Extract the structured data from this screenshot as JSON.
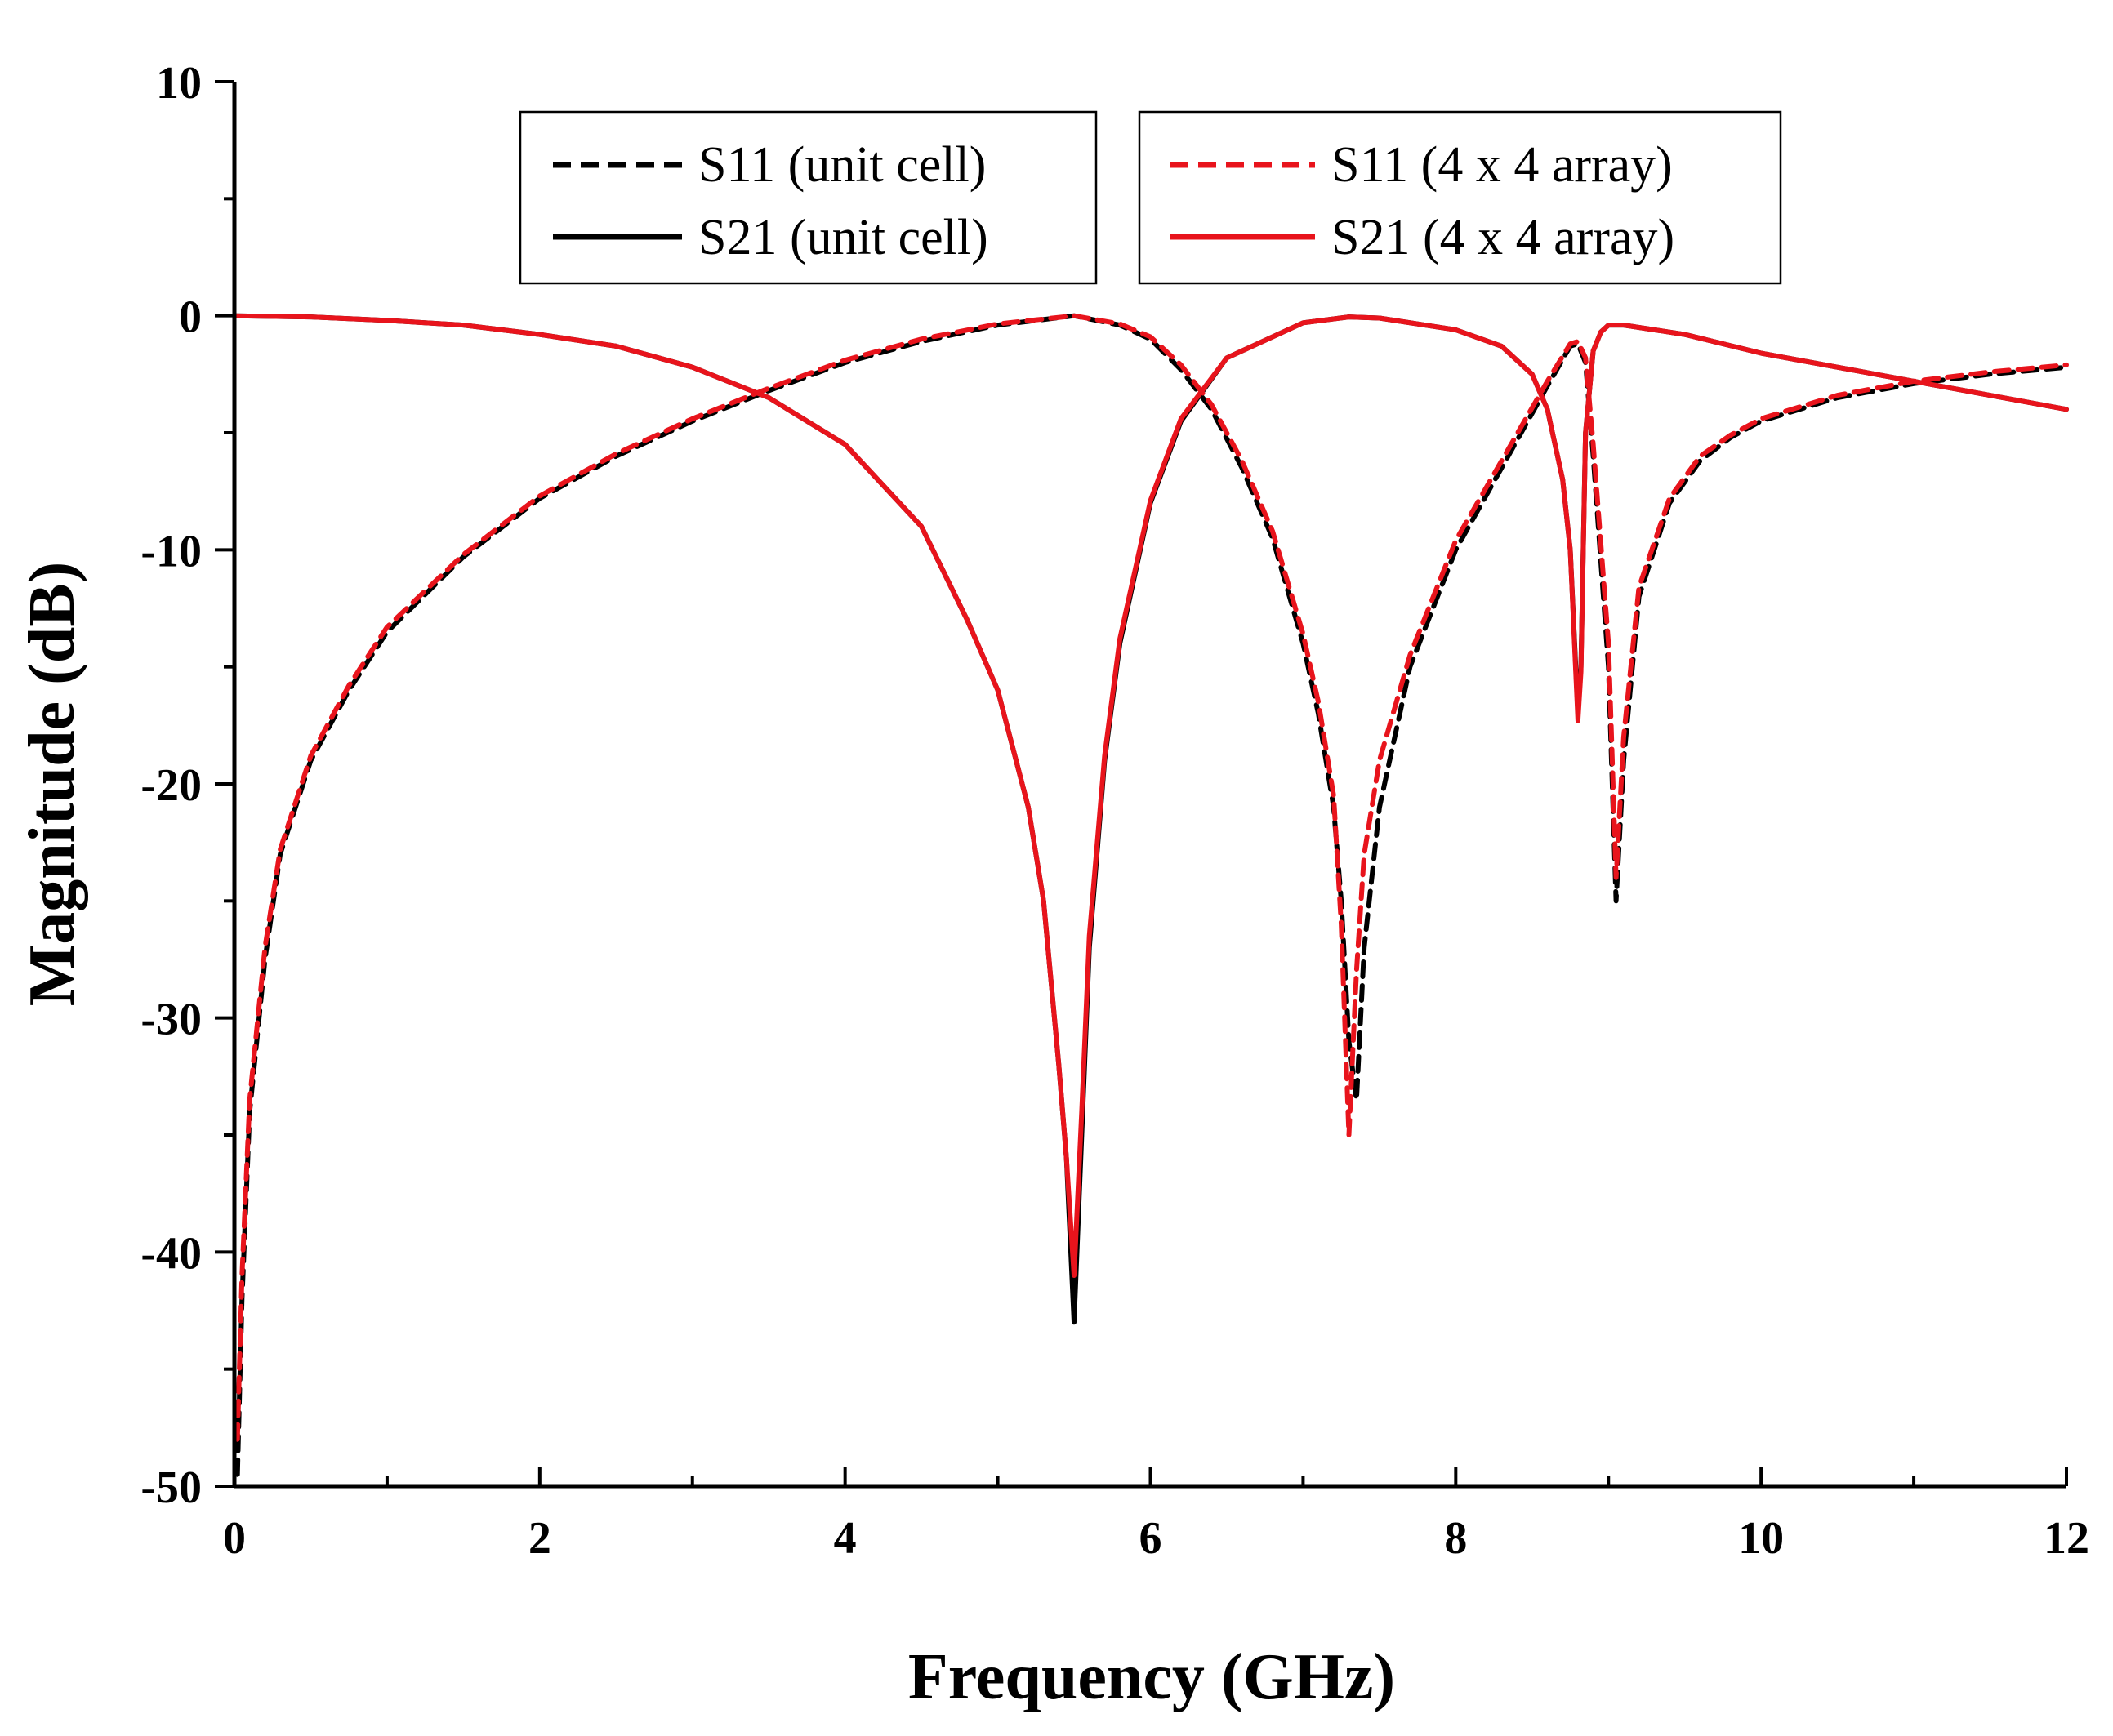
{
  "chart_data": {
    "type": "line",
    "title": "",
    "xlabel": "Frequency (GHz)",
    "ylabel": "Magnitude (dB)",
    "xlim": [
      0,
      12
    ],
    "ylim": [
      -50,
      10
    ],
    "xticks": [
      0,
      2,
      4,
      6,
      8,
      10,
      12
    ],
    "xtick_labels": [
      "0",
      "2",
      "4",
      "6",
      "8",
      "10",
      "12"
    ],
    "yticks": [
      10,
      0,
      -10,
      -20,
      -30,
      -40,
      -50
    ],
    "ytick_labels": [
      "10",
      "0",
      "-10",
      "-20",
      "-30",
      "-40",
      "-50"
    ],
    "grid": false,
    "legend_position": "top",
    "series": [
      {
        "name": "S11 (unit cell)",
        "color": "#000000",
        "style": "dashed",
        "x": [
          0.02,
          0.05,
          0.1,
          0.2,
          0.3,
          0.5,
          0.75,
          1.0,
          1.5,
          2.0,
          2.5,
          3.0,
          3.5,
          4.0,
          4.5,
          5.0,
          5.5,
          5.8,
          6.0,
          6.2,
          6.4,
          6.6,
          6.8,
          7.0,
          7.1,
          7.2,
          7.25,
          7.3,
          7.35,
          7.4,
          7.5,
          7.7,
          8.0,
          8.3,
          8.6,
          8.75,
          8.8,
          8.85,
          8.9,
          9.0,
          9.05,
          9.1,
          9.2,
          9.4,
          9.6,
          9.8,
          10.0,
          10.5,
          11.0,
          11.5,
          12.0
        ],
        "y": [
          -49.5,
          -42,
          -34,
          -27.5,
          -23,
          -19,
          -16,
          -13.5,
          -10.3,
          -7.8,
          -6,
          -4.5,
          -3.2,
          -2,
          -1.1,
          -0.4,
          0,
          -0.4,
          -1,
          -2.3,
          -4,
          -6.5,
          -9.5,
          -14,
          -17,
          -21,
          -25,
          -31,
          -33.5,
          -27,
          -21,
          -15,
          -10,
          -6.5,
          -3,
          -1.3,
          -1.2,
          -2,
          -6,
          -15,
          -25,
          -19,
          -12,
          -8,
          -6.2,
          -5.2,
          -4.5,
          -3.5,
          -2.9,
          -2.5,
          -2.2
        ]
      },
      {
        "name": "S21 (unit cell)",
        "color": "#000000",
        "style": "solid",
        "x": [
          0,
          0.5,
          1.0,
          1.5,
          2.0,
          2.5,
          3.0,
          3.5,
          4.0,
          4.5,
          4.8,
          5.0,
          5.2,
          5.3,
          5.4,
          5.45,
          5.5,
          5.55,
          5.6,
          5.7,
          5.8,
          6.0,
          6.2,
          6.5,
          7.0,
          7.3,
          7.5,
          8.0,
          8.3,
          8.5,
          8.6,
          8.7,
          8.75,
          8.8,
          8.82,
          8.85,
          8.9,
          8.95,
          9.0,
          9.1,
          9.5,
          10.0,
          11.0,
          12.0
        ],
        "y": [
          0,
          -0.05,
          -0.2,
          -0.4,
          -0.8,
          -1.3,
          -2.2,
          -3.5,
          -5.5,
          -9,
          -13,
          -16,
          -21,
          -25,
          -32,
          -36,
          -43,
          -35,
          -27,
          -19,
          -14,
          -8,
          -4.5,
          -1.8,
          -0.3,
          -0.05,
          -0.1,
          -0.6,
          -1.3,
          -2.5,
          -4,
          -7,
          -10,
          -17,
          -15,
          -5,
          -1.5,
          -0.7,
          -0.4,
          -0.4,
          -0.8,
          -1.6,
          -2.8,
          -4
        ]
      },
      {
        "name": "S11 (4 x 4 array)",
        "color": "#e8141c",
        "style": "dashed",
        "x": [
          0.02,
          0.05,
          0.1,
          0.2,
          0.3,
          0.5,
          0.75,
          1.0,
          1.5,
          2.0,
          2.5,
          3.0,
          3.5,
          4.0,
          4.5,
          5.0,
          5.5,
          5.8,
          6.0,
          6.2,
          6.4,
          6.6,
          6.8,
          7.0,
          7.1,
          7.2,
          7.25,
          7.3,
          7.35,
          7.4,
          7.5,
          7.7,
          8.0,
          8.3,
          8.6,
          8.75,
          8.8,
          8.85,
          8.9,
          9.0,
          9.05,
          9.1,
          9.2,
          9.4,
          9.6,
          9.8,
          10.0,
          10.5,
          11.0,
          11.5,
          12.0
        ],
        "y": [
          -48,
          -41,
          -33.5,
          -27,
          -22.8,
          -18.8,
          -15.8,
          -13.3,
          -10.2,
          -7.7,
          -5.9,
          -4.4,
          -3.1,
          -1.9,
          -1,
          -0.35,
          0,
          -0.35,
          -0.9,
          -2.1,
          -3.8,
          -6.2,
          -9.2,
          -13.6,
          -16.5,
          -20.5,
          -26,
          -35,
          -28,
          -23,
          -19,
          -14.5,
          -9.6,
          -6.2,
          -2.8,
          -1.2,
          -1.1,
          -1.8,
          -5.5,
          -14,
          -24,
          -18,
          -11.6,
          -7.8,
          -6,
          -5.1,
          -4.4,
          -3.4,
          -2.8,
          -2.4,
          -2.1
        ]
      },
      {
        "name": "S21 (4 x 4 array)",
        "color": "#e8141c",
        "style": "solid",
        "x": [
          0,
          0.5,
          1.0,
          1.5,
          2.0,
          2.5,
          3.0,
          3.5,
          4.0,
          4.5,
          4.8,
          5.0,
          5.2,
          5.3,
          5.4,
          5.45,
          5.5,
          5.55,
          5.6,
          5.7,
          5.8,
          6.0,
          6.2,
          6.5,
          7.0,
          7.3,
          7.5,
          8.0,
          8.3,
          8.5,
          8.6,
          8.7,
          8.75,
          8.8,
          8.82,
          8.85,
          8.9,
          8.95,
          9.0,
          9.1,
          9.5,
          10.0,
          11.0,
          12.0
        ],
        "y": [
          0,
          -0.05,
          -0.2,
          -0.4,
          -0.8,
          -1.3,
          -2.2,
          -3.5,
          -5.5,
          -9,
          -13,
          -16,
          -21,
          -25,
          -32,
          -36,
          -41,
          -34,
          -26.5,
          -18.8,
          -13.8,
          -7.9,
          -4.4,
          -1.8,
          -0.3,
          -0.05,
          -0.1,
          -0.6,
          -1.3,
          -2.5,
          -4,
          -7,
          -10,
          -17.3,
          -15.2,
          -5,
          -1.5,
          -0.7,
          -0.4,
          -0.4,
          -0.8,
          -1.6,
          -2.8,
          -4
        ]
      }
    ],
    "legend_groups": [
      {
        "entries": [
          {
            "label": "S11 (unit cell)"
          },
          {
            "label": "S21 (unit cell)"
          }
        ]
      },
      {
        "entries": [
          {
            "label": "S11 (4 x 4 array)"
          },
          {
            "label": "S21 (4 x 4 array)"
          }
        ]
      }
    ]
  }
}
